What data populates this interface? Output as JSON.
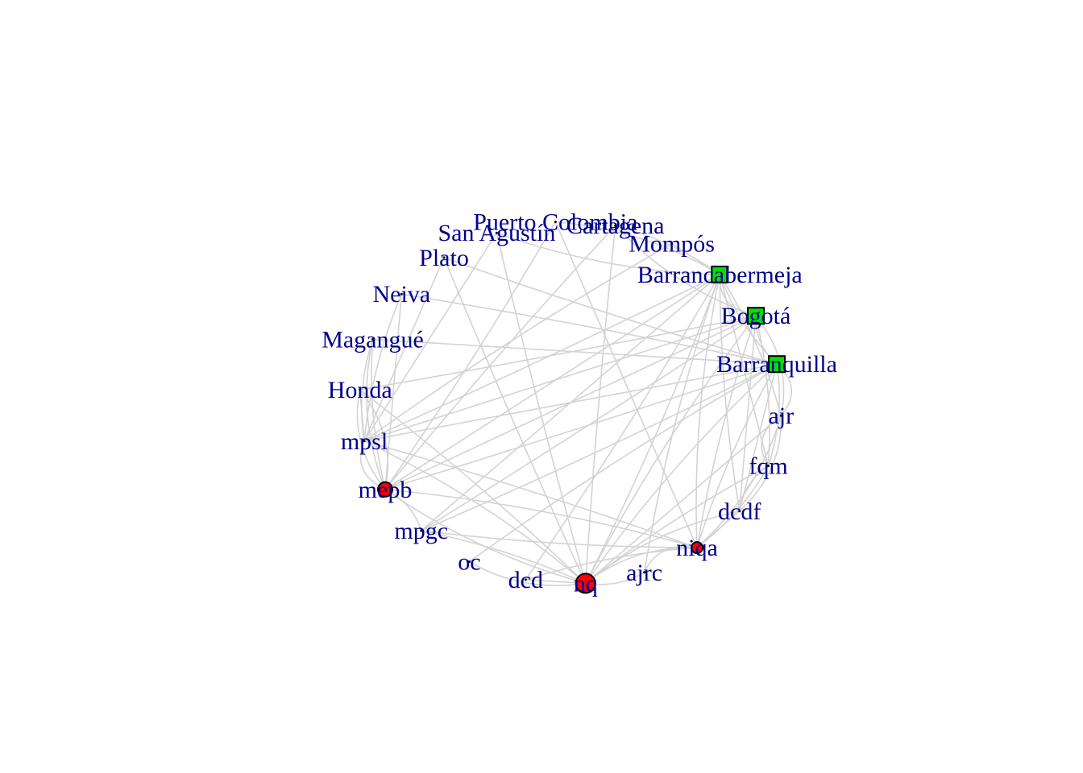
{
  "graph": {
    "layout": "circle",
    "edge_color": "#d3d3d3",
    "label_color": "#00008b",
    "nodes": [
      {
        "id": "barrancabermeja",
        "label": "Barrancabermeja",
        "marker": "square",
        "fill": "#00e000",
        "inner": "a"
      },
      {
        "id": "mompos",
        "label": "Mompós",
        "marker": "none"
      },
      {
        "id": "cartagena",
        "label": "Cartagena",
        "marker": "none"
      },
      {
        "id": "puerto-colombia",
        "label": "Puerto Colombia",
        "marker": "none"
      },
      {
        "id": "san-agustin",
        "label": "San Agustín",
        "marker": "none"
      },
      {
        "id": "plato",
        "label": "Plato",
        "marker": "none"
      },
      {
        "id": "neiva",
        "label": "Neiva",
        "marker": "none"
      },
      {
        "id": "magangue",
        "label": "Magangué",
        "marker": "none"
      },
      {
        "id": "honda",
        "label": "Honda",
        "marker": "none"
      },
      {
        "id": "mpsl",
        "label": "mpsl",
        "marker": "none"
      },
      {
        "id": "mepb",
        "label": "mepb",
        "marker": "circle",
        "fill": "#ff0000"
      },
      {
        "id": "mpgc",
        "label": "mpgc",
        "marker": "none"
      },
      {
        "id": "oc",
        "label": "oc",
        "marker": "none"
      },
      {
        "id": "dcd",
        "label": "dcd",
        "marker": "none"
      },
      {
        "id": "nq",
        "label": "nq",
        "marker": "circle",
        "fill": "#ff0000"
      },
      {
        "id": "ajrc",
        "label": "ajrc",
        "marker": "none"
      },
      {
        "id": "niqa",
        "label": "niqa",
        "marker": "circle",
        "fill": "#ff0000"
      },
      {
        "id": "dcdf",
        "label": "dcdf",
        "marker": "none"
      },
      {
        "id": "fqm",
        "label": "fqm",
        "marker": "none"
      },
      {
        "id": "ajr",
        "label": "ajr",
        "marker": "none"
      },
      {
        "id": "barranquilla",
        "label": "Barranquilla",
        "marker": "square",
        "fill": "#00e000",
        "inner": "n"
      },
      {
        "id": "bogota",
        "label": "Bogotá",
        "marker": "square",
        "fill": "#00e000",
        "inner": "g"
      }
    ],
    "edges": [
      [
        "barrancabermeja",
        "bogota"
      ],
      [
        "barrancabermeja",
        "barranquilla"
      ],
      [
        "barrancabermeja",
        "mompos"
      ],
      [
        "barrancabermeja",
        "cartagena"
      ],
      [
        "barrancabermeja",
        "puerto-colombia"
      ],
      [
        "barrancabermeja",
        "san-agustin"
      ],
      [
        "barrancabermeja",
        "mpsl"
      ],
      [
        "barrancabermeja",
        "mepb"
      ],
      [
        "barrancabermeja",
        "mpgc"
      ],
      [
        "barrancabermeja",
        "nq"
      ],
      [
        "barrancabermeja",
        "niqa"
      ],
      [
        "barrancabermeja",
        "dcdf"
      ],
      [
        "barrancabermeja",
        "fqm"
      ],
      [
        "barrancabermeja",
        "ajr"
      ],
      [
        "barrancabermeja",
        "dcd"
      ],
      [
        "barrancabermeja",
        "ajrc"
      ],
      [
        "bogota",
        "barranquilla"
      ],
      [
        "bogota",
        "mpsl"
      ],
      [
        "bogota",
        "mepb"
      ],
      [
        "bogota",
        "mpgc"
      ],
      [
        "bogota",
        "nq"
      ],
      [
        "bogota",
        "niqa"
      ],
      [
        "bogota",
        "dcdf"
      ],
      [
        "bogota",
        "fqm"
      ],
      [
        "bogota",
        "ajr"
      ],
      [
        "bogota",
        "cartagena"
      ],
      [
        "bogota",
        "honda"
      ],
      [
        "barranquilla",
        "mpsl"
      ],
      [
        "barranquilla",
        "mepb"
      ],
      [
        "barranquilla",
        "mpgc"
      ],
      [
        "barranquilla",
        "nq"
      ],
      [
        "barranquilla",
        "niqa"
      ],
      [
        "barranquilla",
        "dcdf"
      ],
      [
        "barranquilla",
        "fqm"
      ],
      [
        "barranquilla",
        "ajr"
      ],
      [
        "barranquilla",
        "oc"
      ],
      [
        "barranquilla",
        "plato"
      ],
      [
        "barranquilla",
        "magangue"
      ],
      [
        "barranquilla",
        "neiva"
      ],
      [
        "mpsl",
        "mepb"
      ],
      [
        "mpsl",
        "nq"
      ],
      [
        "mpsl",
        "niqa"
      ],
      [
        "mpsl",
        "honda"
      ],
      [
        "mpsl",
        "magangue"
      ],
      [
        "mepb",
        "nq"
      ],
      [
        "mepb",
        "niqa"
      ],
      [
        "mepb",
        "mpgc"
      ],
      [
        "mepb",
        "neiva"
      ],
      [
        "mepb",
        "magangue"
      ],
      [
        "mepb",
        "honda"
      ],
      [
        "nq",
        "niqa"
      ],
      [
        "nq",
        "mpgc"
      ],
      [
        "nq",
        "dcd"
      ],
      [
        "nq",
        "ajrc"
      ],
      [
        "nq",
        "oc"
      ],
      [
        "nq",
        "dcdf"
      ],
      [
        "nq",
        "fqm"
      ],
      [
        "nq",
        "ajr"
      ],
      [
        "nq",
        "plato"
      ],
      [
        "nq",
        "san-agustin"
      ],
      [
        "nq",
        "cartagena"
      ],
      [
        "nq",
        "honda"
      ],
      [
        "niqa",
        "dcdf"
      ],
      [
        "niqa",
        "fqm"
      ],
      [
        "niqa",
        "ajr"
      ],
      [
        "niqa",
        "ajrc"
      ],
      [
        "niqa",
        "dcd"
      ],
      [
        "niqa",
        "puerto-colombia"
      ],
      [
        "niqa",
        "mpgc"
      ],
      [
        "dcdf",
        "ajr"
      ],
      [
        "fqm",
        "ajr"
      ],
      [
        "dcdf",
        "fqm"
      ],
      [
        "plato",
        "mpsl"
      ],
      [
        "neiva",
        "mpsl"
      ],
      [
        "magangue",
        "mepb"
      ],
      [
        "honda",
        "mepb"
      ],
      [
        "puerto-colombia",
        "mepb"
      ],
      [
        "san-agustin",
        "mpsl"
      ],
      [
        "cartagena",
        "mepb"
      ],
      [
        "mompos",
        "mpsl"
      ]
    ]
  }
}
